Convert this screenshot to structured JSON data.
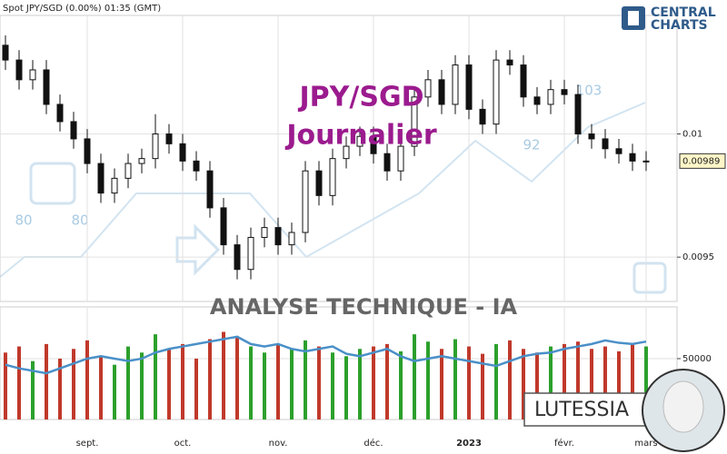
{
  "chart_data": {
    "type": "candlestick",
    "title": "Spot JPY/SGD  (0.00%)  01:35 (GMT)",
    "watermark": [
      "JPY/SGD",
      "Journalier"
    ],
    "subtitle": "ANALYSE TECHNIQUE - IA",
    "brand": [
      "CENTRAL",
      "CHARTS"
    ],
    "badge": "LUTESSIA",
    "decor_labels": [
      "80",
      "80",
      "92",
      "103"
    ],
    "categories": [
      null,
      null,
      null,
      null,
      null,
      null,
      "sept.",
      null,
      null,
      null,
      null,
      null,
      null,
      "oct.",
      null,
      null,
      null,
      null,
      null,
      null,
      "nov.",
      null,
      null,
      null,
      null,
      null,
      null,
      "déc.",
      null,
      null,
      null,
      null,
      null,
      null,
      "2023",
      null,
      null,
      null,
      null,
      null,
      null,
      "févr.",
      null,
      null,
      null,
      null,
      null,
      "mars"
    ],
    "open": [
      0.01036,
      0.0103,
      0.01022,
      0.01026,
      0.01012,
      0.01005,
      0.00998,
      0.00988,
      0.00976,
      0.00982,
      0.00988,
      0.0099,
      0.01,
      0.00996,
      0.00989,
      0.00985,
      0.0097,
      0.00955,
      0.00945,
      0.00958,
      0.00962,
      0.00955,
      0.0096,
      0.00985,
      0.00975,
      0.0099,
      0.00995,
      0.00999,
      0.00992,
      0.00985,
      0.00995,
      0.01015,
      0.01022,
      0.01012,
      0.01028,
      0.0101,
      0.01004,
      0.0103,
      0.01028,
      0.01015,
      0.01012,
      0.01018,
      0.01016,
      0.01,
      0.00998,
      0.00994,
      0.00992,
      0.00989
    ],
    "high": [
      0.0104,
      0.01034,
      0.0103,
      0.0103,
      0.01016,
      0.01009,
      0.01002,
      0.00992,
      0.00986,
      0.00992,
      0.00994,
      0.01008,
      0.01004,
      0.01,
      0.00993,
      0.00989,
      0.00974,
      0.00959,
      0.00962,
      0.00966,
      0.00966,
      0.00964,
      0.00989,
      0.00989,
      0.00994,
      0.00999,
      0.01003,
      0.01003,
      0.00996,
      0.00999,
      0.01019,
      0.01026,
      0.01026,
      0.01032,
      0.01032,
      0.01014,
      0.01034,
      0.01034,
      0.01032,
      0.01019,
      0.01022,
      0.01022,
      0.0102,
      0.01004,
      0.01002,
      0.00998,
      0.00996,
      0.00993
    ],
    "low": [
      0.01026,
      0.01018,
      0.01018,
      0.01008,
      0.01001,
      0.00994,
      0.00984,
      0.00972,
      0.00972,
      0.00978,
      0.00984,
      0.00986,
      0.00992,
      0.00985,
      0.00981,
      0.00966,
      0.00951,
      0.00941,
      0.00941,
      0.00954,
      0.00951,
      0.00951,
      0.00956,
      0.00971,
      0.00971,
      0.00986,
      0.00991,
      0.00988,
      0.00981,
      0.00981,
      0.00991,
      0.01011,
      0.01008,
      0.01008,
      0.01006,
      0.01,
      0.01,
      0.01024,
      0.01011,
      0.01008,
      0.01008,
      0.01012,
      0.00996,
      0.00994,
      0.0099,
      0.00988,
      0.00985,
      0.00985
    ],
    "close": [
      0.0103,
      0.01022,
      0.01026,
      0.01012,
      0.01005,
      0.00998,
      0.00988,
      0.00976,
      0.00982,
      0.00988,
      0.0099,
      0.01,
      0.00996,
      0.00989,
      0.00985,
      0.0097,
      0.00955,
      0.00945,
      0.00958,
      0.00962,
      0.00955,
      0.0096,
      0.00985,
      0.00975,
      0.0099,
      0.00995,
      0.00999,
      0.00992,
      0.00985,
      0.00995,
      0.01015,
      0.01022,
      0.01012,
      0.01028,
      0.0101,
      0.01004,
      0.0103,
      0.01028,
      0.01015,
      0.01012,
      0.01018,
      0.01016,
      0.01,
      0.00998,
      0.00994,
      0.00992,
      0.00989,
      0.00989
    ],
    "up_color": "#2ca02c",
    "down_color": "#c0392b",
    "ylim": [
      0.00932,
      0.01047
    ],
    "yticks": [
      0.01,
      0.0095
    ],
    "last_price": 0.00989,
    "volume": [
      55000,
      60000,
      48000,
      62000,
      50000,
      58000,
      65000,
      52000,
      45000,
      60000,
      55000,
      70000,
      58000,
      62000,
      50000,
      66000,
      72000,
      68000,
      60000,
      55000,
      62000,
      58000,
      65000,
      60000,
      55000,
      52000,
      58000,
      60000,
      62000,
      56000,
      70000,
      64000,
      58000,
      66000,
      60000,
      54000,
      62000,
      65000,
      58000,
      55000,
      60000,
      62000,
      64000,
      58000,
      60000,
      56000,
      62000,
      60000
    ],
    "volume_line": [
      45000,
      42000,
      40000,
      38000,
      42000,
      46000,
      50000,
      52000,
      50000,
      48000,
      50000,
      55000,
      58000,
      60000,
      62000,
      64000,
      66000,
      68000,
      62000,
      60000,
      62000,
      58000,
      56000,
      58000,
      60000,
      54000,
      52000,
      55000,
      58000,
      52000,
      48000,
      50000,
      52000,
      50000,
      48000,
      46000,
      44000,
      48000,
      52000,
      54000,
      55000,
      58000,
      60000,
      62000,
      65000,
      63000,
      62000,
      64000
    ],
    "volume_line_color": "#4a90c8",
    "volume_ylim": [
      0,
      92500
    ],
    "volume_yticks": [
      50000
    ],
    "grid": true
  }
}
